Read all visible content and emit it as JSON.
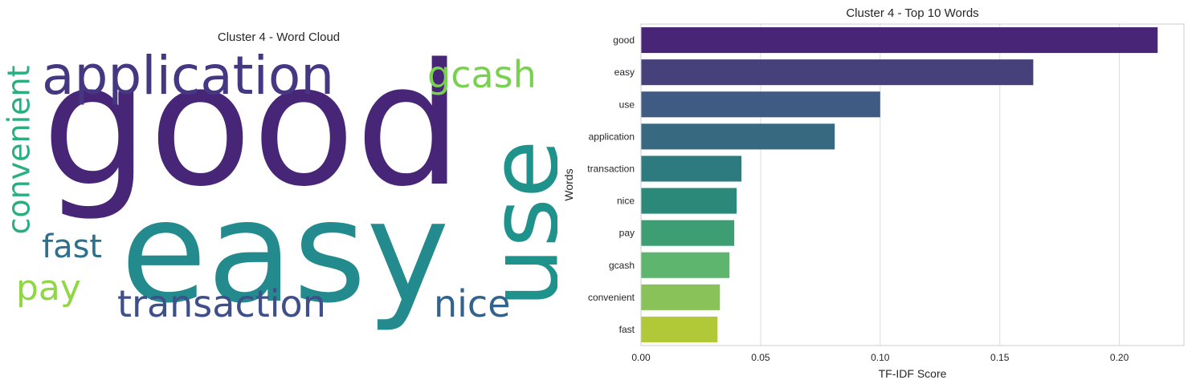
{
  "wordcloud": {
    "title": "Cluster 4 - Word Cloud",
    "words": [
      {
        "text": "good",
        "color": "#482677"
      },
      {
        "text": "easy",
        "color": "#238A8D"
      },
      {
        "text": "use",
        "color": "#20928C"
      },
      {
        "text": "application",
        "color": "#453781"
      },
      {
        "text": "gcash",
        "color": "#7AD151"
      },
      {
        "text": "convenient",
        "color": "#29AF7F"
      },
      {
        "text": "fast",
        "color": "#2D708E"
      },
      {
        "text": "pay",
        "color": "#8FD744"
      },
      {
        "text": "transaction",
        "color": "#3F4F8A"
      },
      {
        "text": "nice",
        "color": "#33638D"
      }
    ]
  },
  "chart_data": {
    "type": "bar",
    "orientation": "horizontal",
    "title": "Cluster 4 - Top 10 Words",
    "xlabel": "TF-IDF Score",
    "ylabel": "Words",
    "categories": [
      "good",
      "easy",
      "use",
      "application",
      "transaction",
      "nice",
      "pay",
      "gcash",
      "convenient",
      "fast"
    ],
    "values": [
      0.216,
      0.164,
      0.1,
      0.081,
      0.042,
      0.04,
      0.039,
      0.037,
      0.033,
      0.032
    ],
    "colors": [
      "#482576",
      "#47417B",
      "#3F5A83",
      "#376A80",
      "#2E7B7F",
      "#2A8979",
      "#3C9E72",
      "#5EB56E",
      "#8AC25A",
      "#B1C937"
    ],
    "xlim": [
      0,
      0.227
    ],
    "xticks": [
      "0.00",
      "0.05",
      "0.10",
      "0.15",
      "0.20"
    ],
    "grid": true
  }
}
